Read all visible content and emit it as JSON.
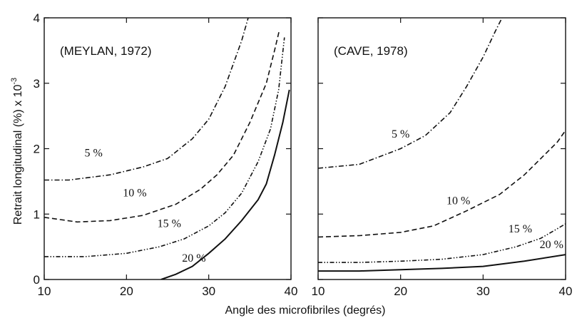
{
  "chart_data": [
    {
      "type": "line",
      "title": "(MEYLAN, 1972)",
      "xlim": [
        10,
        40
      ],
      "ylim": [
        0,
        4
      ],
      "xticks": [
        "10",
        "20",
        "30",
        "40"
      ],
      "yticks": [
        "0",
        "1",
        "2",
        "3",
        "4"
      ],
      "series": [
        {
          "name": "5 %",
          "style": "dash-dot",
          "x": [
            10,
            13,
            18,
            22,
            25,
            28,
            30,
            32,
            34,
            34.8
          ],
          "y": [
            1.52,
            1.52,
            1.6,
            1.72,
            1.85,
            2.15,
            2.45,
            2.95,
            3.65,
            4.0
          ]
        },
        {
          "name": "10 %",
          "style": "dashed",
          "x": [
            10,
            14,
            18,
            22,
            26,
            29,
            31,
            33,
            35,
            37,
            38,
            38.6
          ],
          "y": [
            0.95,
            0.88,
            0.9,
            0.98,
            1.15,
            1.38,
            1.6,
            1.9,
            2.4,
            3.0,
            3.5,
            3.82
          ]
        },
        {
          "name": "15 %",
          "style": "dash-dot-dot",
          "x": [
            10,
            15,
            20,
            24,
            27,
            30,
            32,
            34,
            36,
            37.5,
            38.5,
            39.2
          ],
          "y": [
            0.35,
            0.35,
            0.4,
            0.5,
            0.62,
            0.82,
            1.02,
            1.32,
            1.8,
            2.3,
            2.9,
            3.7
          ]
        },
        {
          "name": "20 %",
          "style": "solid",
          "x": [
            24.2,
            26,
            28,
            30,
            32,
            34,
            36,
            37,
            38,
            39,
            39.8
          ],
          "y": [
            0.0,
            0.08,
            0.2,
            0.4,
            0.62,
            0.9,
            1.22,
            1.46,
            1.9,
            2.4,
            2.9
          ]
        }
      ],
      "labels": [
        {
          "text": "5 %",
          "x": 16,
          "y": 1.88
        },
        {
          "text": "10 %",
          "x": 21,
          "y": 1.27
        },
        {
          "text": "15 %",
          "x": 25.2,
          "y": 0.8
        },
        {
          "text": "20 %",
          "x": 28.2,
          "y": 0.27
        }
      ]
    },
    {
      "type": "line",
      "title": "(CAVE, 1978)",
      "xlim": [
        10,
        40
      ],
      "ylim": [
        0,
        4
      ],
      "xticks": [
        "10",
        "20",
        "30",
        "40"
      ],
      "series": [
        {
          "name": "5 %",
          "style": "dash-dot",
          "x": [
            10,
            15,
            20,
            23,
            26,
            28,
            30,
            31.5,
            32.3
          ],
          "y": [
            1.7,
            1.76,
            2.0,
            2.2,
            2.55,
            2.95,
            3.4,
            3.8,
            4.0
          ]
        },
        {
          "name": "10 %",
          "style": "dashed",
          "x": [
            10,
            15,
            20,
            24,
            28,
            32,
            35,
            37,
            39,
            40
          ],
          "y": [
            0.65,
            0.67,
            0.72,
            0.82,
            1.05,
            1.3,
            1.6,
            1.85,
            2.1,
            2.28
          ]
        },
        {
          "name": "15 %",
          "style": "dash-dot-dot",
          "x": [
            10,
            15,
            20,
            25,
            30,
            34,
            37,
            40
          ],
          "y": [
            0.26,
            0.26,
            0.28,
            0.31,
            0.38,
            0.5,
            0.63,
            0.85
          ]
        },
        {
          "name": "20 %",
          "style": "solid",
          "x": [
            10,
            15,
            20,
            25,
            30,
            35,
            40
          ],
          "y": [
            0.13,
            0.13,
            0.15,
            0.17,
            0.2,
            0.28,
            0.38
          ]
        }
      ],
      "labels": [
        {
          "text": "5 %",
          "x": 20,
          "y": 2.17
        },
        {
          "text": "10 %",
          "x": 27,
          "y": 1.15
        },
        {
          "text": "15 %",
          "x": 34.5,
          "y": 0.72
        },
        {
          "text": "20 %",
          "x": 38.3,
          "y": 0.48
        }
      ]
    }
  ],
  "ylabel": "Retrait longitudinal (%) x 10",
  "ylabel_exp": "-3",
  "xlabel": "Angle des microfibriles (degrés)"
}
